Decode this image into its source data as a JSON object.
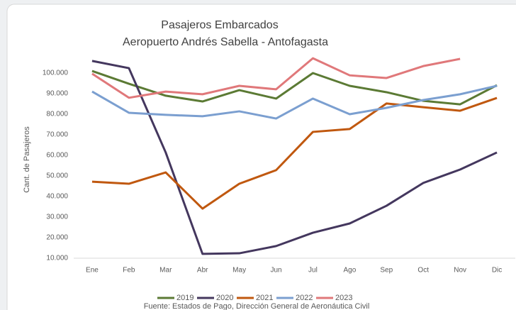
{
  "chart_data": {
    "type": "line",
    "title": "Pasajeros Embarcados",
    "subtitle": "Aeropuerto Andrés Sabella - Antofagasta",
    "y_label": "Cant. de Pasajeros",
    "source": "Fuente: Estados de Pago, Dirección General de Aeronáutica Civil",
    "categories": [
      "Ene",
      "Feb",
      "Mar",
      "Abr",
      "May",
      "Jun",
      "Jul",
      "Ago",
      "Sep",
      "Oct",
      "Nov",
      "Dic"
    ],
    "series": [
      {
        "name": "2019",
        "color": "#5b7a34",
        "values": [
          101000,
          94800,
          89000,
          86200,
          91700,
          87600,
          100000,
          93800,
          90700,
          86500,
          84800,
          94100
        ]
      },
      {
        "name": "2020",
        "color": "#44375e",
        "values": [
          105900,
          102400,
          61400,
          12100,
          12400,
          15900,
          22400,
          26900,
          35500,
          46600,
          53100,
          61400
        ]
      },
      {
        "name": "2021",
        "color": "#c0580f",
        "values": [
          47200,
          46200,
          51700,
          34100,
          46200,
          52800,
          71400,
          72800,
          85200,
          83400,
          81700,
          87900
        ]
      },
      {
        "name": "2022",
        "color": "#7b9fd0",
        "values": [
          91000,
          80700,
          79700,
          79000,
          81400,
          77900,
          87600,
          80000,
          83100,
          86900,
          89700,
          93800
        ]
      },
      {
        "name": "2023",
        "color": "#e0787a",
        "values": [
          99700,
          88000,
          91000,
          89700,
          93800,
          92100,
          107200,
          98900,
          97600,
          103400,
          106900,
          null
        ]
      }
    ],
    "ylim": [
      10000,
      110000
    ],
    "yticks": [
      {
        "value": 10000,
        "label": "10.000"
      },
      {
        "value": 20000,
        "label": "20.000"
      },
      {
        "value": 30000,
        "label": "30.000"
      },
      {
        "value": 40000,
        "label": "40.000"
      },
      {
        "value": 50000,
        "label": "50.000"
      },
      {
        "value": 60000,
        "label": "60.000"
      },
      {
        "value": 70000,
        "label": "70.000"
      },
      {
        "value": 80000,
        "label": "80.000"
      },
      {
        "value": 90000,
        "label": "90.000"
      },
      {
        "value": 100000,
        "label": "100.000"
      }
    ],
    "legend": "bottom"
  }
}
